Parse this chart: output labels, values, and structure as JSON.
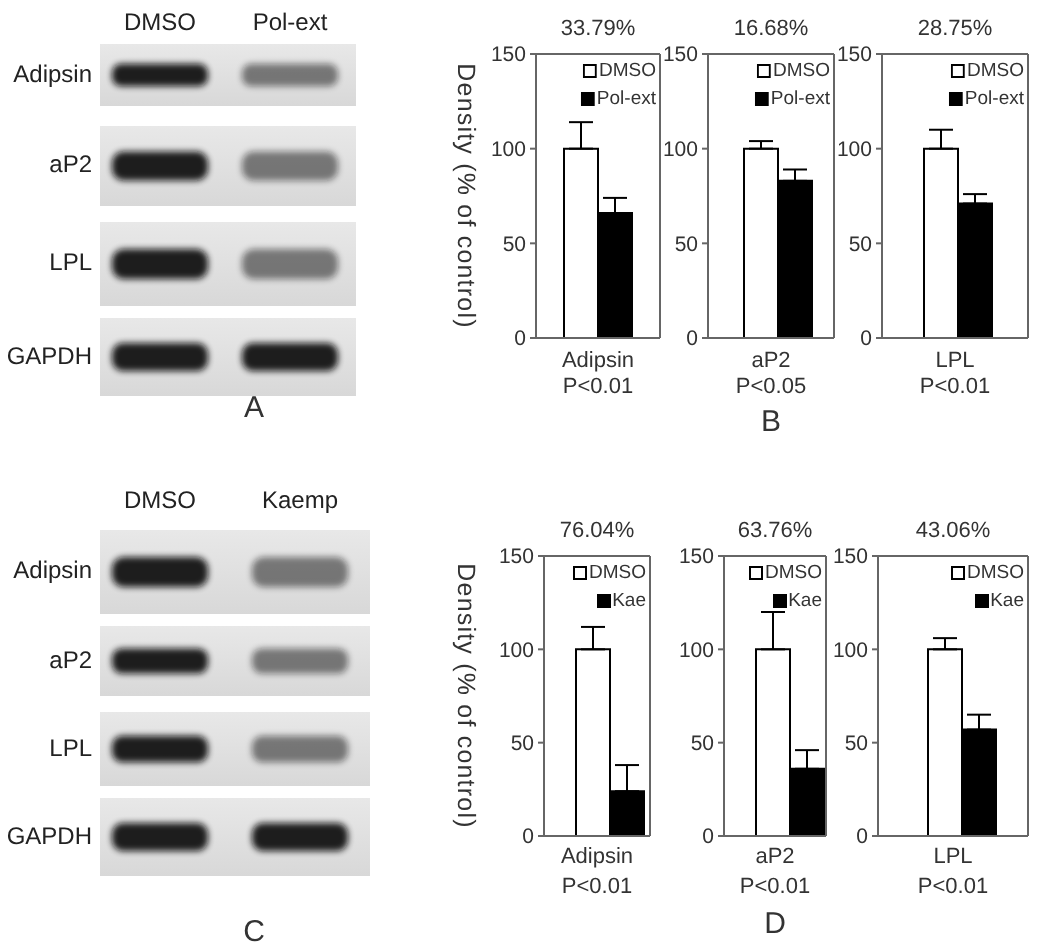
{
  "chart_data": [
    {
      "type": "other",
      "categories": [
        "DMSO",
        "Pol-ext"
      ],
      "y_categories": [
        "Adipsin",
        "aP2",
        "LPL",
        "GAPDH"
      ],
      "annotations": [
        "A"
      ]
    },
    {
      "type": "bar",
      "title": "33.79%",
      "ylabel": "Density (% of control)",
      "xlabel": "Adipsin",
      "annotations": [
        "P<0.01"
      ],
      "categories": [
        null
      ],
      "series": [
        {
          "name": "DMSO",
          "color": "#ffffff",
          "values": [
            100
          ],
          "errors": [
            [
              100,
              114
            ]
          ]
        },
        {
          "name": "Pol-ext",
          "color": "#000000",
          "values": [
            66
          ],
          "errors": [
            [
              66,
              74
            ]
          ]
        }
      ],
      "ylim": [
        0,
        150
      ],
      "yticks": [
        0,
        50,
        100,
        150
      ],
      "legend": "top right"
    },
    {
      "type": "bar",
      "title": "16.68%",
      "xlabel": "aP2",
      "annotations": [
        "P<0.05",
        "B"
      ],
      "categories": [
        null
      ],
      "series": [
        {
          "name": "DMSO",
          "color": "#ffffff",
          "values": [
            100
          ],
          "errors": [
            [
              100,
              104
            ]
          ]
        },
        {
          "name": "Pol-ext",
          "color": "#000000",
          "values": [
            83
          ],
          "errors": [
            [
              83,
              89
            ]
          ]
        }
      ],
      "ylim": [
        0,
        150
      ],
      "yticks": [
        0,
        50,
        100,
        150
      ],
      "legend": "top right"
    },
    {
      "type": "bar",
      "title": "28.75%",
      "xlabel": "LPL",
      "annotations": [
        "P<0.01"
      ],
      "categories": [
        null
      ],
      "series": [
        {
          "name": "DMSO",
          "color": "#ffffff",
          "values": [
            100
          ],
          "errors": [
            [
              100,
              110
            ]
          ]
        },
        {
          "name": "Pol-ext",
          "color": "#000000",
          "values": [
            71
          ],
          "errors": [
            [
              71,
              76
            ]
          ]
        }
      ],
      "ylim": [
        0,
        150
      ],
      "yticks": [
        0,
        50,
        100,
        150
      ],
      "legend": "top right"
    },
    {
      "type": "other",
      "categories": [
        "DMSO",
        "Kaemp"
      ],
      "y_categories": [
        "Adipsin",
        "aP2",
        "LPL",
        "GAPDH"
      ],
      "annotations": [
        "C"
      ]
    },
    {
      "type": "bar",
      "title": "76.04%",
      "ylabel": "Density (% of control)",
      "xlabel": "Adipsin",
      "annotations": [
        "P<0.01"
      ],
      "categories": [
        null
      ],
      "series": [
        {
          "name": "DMSO",
          "color": "#ffffff",
          "values": [
            100
          ],
          "errors": [
            [
              100,
              112
            ]
          ]
        },
        {
          "name": "Kae",
          "color": "#000000",
          "values": [
            24
          ],
          "errors": [
            [
              24,
              38
            ]
          ]
        }
      ],
      "ylim": [
        0,
        150
      ],
      "yticks": [
        0,
        50,
        100,
        150
      ],
      "legend": "top right"
    },
    {
      "type": "bar",
      "title": "63.76%",
      "xlabel": "aP2",
      "annotations": [
        "P<0.01",
        "D"
      ],
      "categories": [
        null
      ],
      "series": [
        {
          "name": "DMSO",
          "color": "#ffffff",
          "values": [
            100
          ],
          "errors": [
            [
              100,
              120
            ]
          ]
        },
        {
          "name": "Kae",
          "color": "#000000",
          "values": [
            36
          ],
          "errors": [
            [
              36,
              46
            ]
          ]
        }
      ],
      "ylim": [
        0,
        150
      ],
      "yticks": [
        0,
        50,
        100,
        150
      ],
      "legend": "top right"
    },
    {
      "type": "bar",
      "title": "43.06%",
      "xlabel": "LPL",
      "annotations": [
        "P<0.01"
      ],
      "categories": [
        null
      ],
      "series": [
        {
          "name": "DMSO",
          "color": "#ffffff",
          "values": [
            100
          ],
          "errors": [
            [
              100,
              106
            ]
          ]
        },
        {
          "name": "Kae",
          "color": "#000000",
          "values": [
            57
          ],
          "errors": [
            [
              57,
              65
            ]
          ]
        }
      ],
      "ylim": [
        0,
        150
      ],
      "yticks": [
        0,
        50,
        100,
        150
      ],
      "legend": "top right"
    }
  ]
}
